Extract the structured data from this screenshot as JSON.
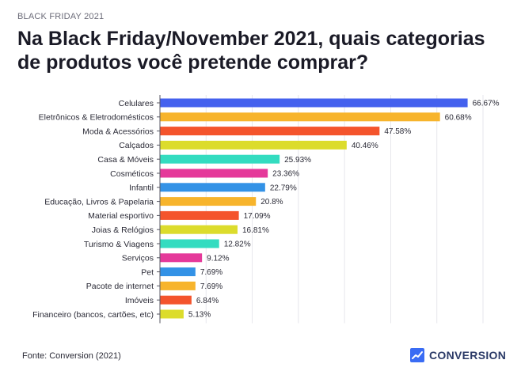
{
  "header": {
    "eyebrow": "BLACK FRIDAY 2021",
    "title": "Na Black Friday/November 2021, quais categorias de produtos você pretende comprar?"
  },
  "footer": {
    "source": "Fonte: Conversion (2021)",
    "brand": "CONVERSION",
    "brand_icon": "trend-chart-icon",
    "brand_color": "#2b3a67"
  },
  "chart_data": {
    "type": "bar",
    "orientation": "horizontal",
    "categories": [
      "Celulares",
      "Eletrônicos & Eletrodomésticos",
      "Moda & Acessórios",
      "Calçados",
      "Casa & Móveis",
      "Cosméticos",
      "Infantil",
      "Educação, Livros & Papelaria",
      "Material esportivo",
      "Joias & Relógios",
      "Turismo & Viagens",
      "Serviços",
      "Pet",
      "Pacote de internet",
      "Imóveis",
      "Financeiro (bancos, cartões, etc)"
    ],
    "values": [
      66.67,
      60.68,
      47.58,
      40.46,
      25.93,
      23.36,
      22.79,
      20.8,
      17.09,
      16.81,
      12.82,
      9.12,
      7.69,
      7.69,
      6.84,
      5.13
    ],
    "value_labels": [
      "66.67%",
      "60.68%",
      "47.58%",
      "40.46%",
      "25.93%",
      "23.36%",
      "22.79%",
      "20.8%",
      "17.09%",
      "16.81%",
      "12.82%",
      "9.12%",
      "7.69%",
      "7.69%",
      "6.84%",
      "5.13%"
    ],
    "colors": [
      "#4461ee",
      "#f7b42c",
      "#f4542c",
      "#dcdc2c",
      "#33dcc0",
      "#e5399a",
      "#3392e6",
      "#f7b42c",
      "#f4542c",
      "#dcdc2c",
      "#33dcc0",
      "#e5399a",
      "#3392e6",
      "#f7b42c",
      "#f4542c",
      "#dcdc2c"
    ],
    "xlim": [
      0,
      70
    ],
    "grid": true,
    "legend": "none",
    "title": "",
    "xlabel": "",
    "ylabel": ""
  }
}
